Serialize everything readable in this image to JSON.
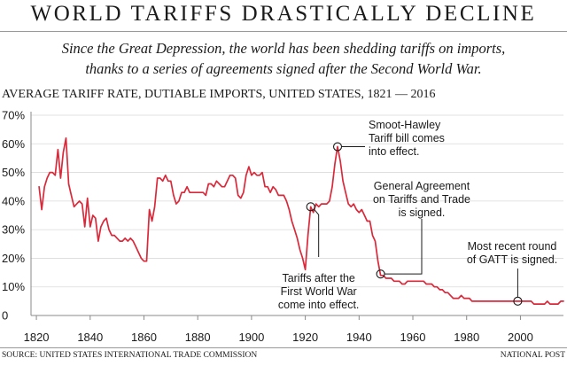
{
  "header": {
    "title": "WORLD TARIFFS DRASTICALLY DECLINE",
    "subtitle_line1": "Since the Great Depression, the world has been shedding tariffs on imports,",
    "subtitle_line2": "thanks to a series of agreements signed after the Second World War."
  },
  "footer": {
    "source": "SOURCE: UNITED STATES INTERNATIONAL TRADE COMMISSION",
    "credit": "NATIONAL POST"
  },
  "colors": {
    "line": "#d9293a",
    "grid": "#d9d9d9",
    "text": "#1a1a1a"
  },
  "chart_data": {
    "type": "line",
    "title": "AVERAGE TARIFF RATE, DUTIABLE IMPORTS, UNITED STATES, 1821 — 2016",
    "xlabel": "",
    "ylabel": "",
    "xlim": [
      1818,
      2016
    ],
    "ylim": [
      0,
      70
    ],
    "x_ticks": [
      1820,
      1840,
      1860,
      1880,
      1900,
      1920,
      1940,
      1960,
      1980,
      2000
    ],
    "y_ticks": [
      0,
      10,
      20,
      30,
      40,
      50,
      60,
      70
    ],
    "y_tick_labels": [
      "0",
      "10%",
      "20%",
      "30%",
      "40%",
      "50%",
      "60%",
      "70%"
    ],
    "grid": true,
    "series": [
      {
        "name": "",
        "color": "#d9293a",
        "points": [
          [
            1821,
            45
          ],
          [
            1822,
            37
          ],
          [
            1823,
            45
          ],
          [
            1824,
            48
          ],
          [
            1825,
            50
          ],
          [
            1826,
            50
          ],
          [
            1827,
            49
          ],
          [
            1828,
            58
          ],
          [
            1829,
            48
          ],
          [
            1830,
            57
          ],
          [
            1831,
            62
          ],
          [
            1832,
            46
          ],
          [
            1833,
            42
          ],
          [
            1834,
            38
          ],
          [
            1835,
            39
          ],
          [
            1836,
            40
          ],
          [
            1837,
            39
          ],
          [
            1838,
            31
          ],
          [
            1839,
            41
          ],
          [
            1840,
            31
          ],
          [
            1841,
            35
          ],
          [
            1842,
            34
          ],
          [
            1843,
            26
          ],
          [
            1844,
            31
          ],
          [
            1845,
            33
          ],
          [
            1846,
            34
          ],
          [
            1847,
            30
          ],
          [
            1848,
            28
          ],
          [
            1849,
            28
          ],
          [
            1850,
            27
          ],
          [
            1851,
            26
          ],
          [
            1852,
            26
          ],
          [
            1853,
            27
          ],
          [
            1854,
            26
          ],
          [
            1855,
            27
          ],
          [
            1856,
            26
          ],
          [
            1857,
            24
          ],
          [
            1858,
            22
          ],
          [
            1859,
            20
          ],
          [
            1860,
            19
          ],
          [
            1861,
            19
          ],
          [
            1862,
            37
          ],
          [
            1863,
            33
          ],
          [
            1864,
            38
          ],
          [
            1865,
            48
          ],
          [
            1866,
            48
          ],
          [
            1867,
            47
          ],
          [
            1868,
            49
          ],
          [
            1869,
            47
          ],
          [
            1870,
            47
          ],
          [
            1871,
            42
          ],
          [
            1872,
            39
          ],
          [
            1873,
            40
          ],
          [
            1874,
            43
          ],
          [
            1875,
            43
          ],
          [
            1876,
            45
          ],
          [
            1877,
            43
          ],
          [
            1878,
            43
          ],
          [
            1879,
            43
          ],
          [
            1880,
            43
          ],
          [
            1881,
            43
          ],
          [
            1882,
            43
          ],
          [
            1883,
            42
          ],
          [
            1884,
            46
          ],
          [
            1885,
            46
          ],
          [
            1886,
            45
          ],
          [
            1887,
            47
          ],
          [
            1888,
            46
          ],
          [
            1889,
            45
          ],
          [
            1890,
            45
          ],
          [
            1891,
            47
          ],
          [
            1892,
            49
          ],
          [
            1893,
            49
          ],
          [
            1894,
            48
          ],
          [
            1895,
            42
          ],
          [
            1896,
            41
          ],
          [
            1897,
            43
          ],
          [
            1898,
            49
          ],
          [
            1899,
            52
          ],
          [
            1900,
            49
          ],
          [
            1901,
            50
          ],
          [
            1902,
            49
          ],
          [
            1903,
            49
          ],
          [
            1904,
            50
          ],
          [
            1905,
            45
          ],
          [
            1906,
            45
          ],
          [
            1907,
            43
          ],
          [
            1908,
            45
          ],
          [
            1909,
            44
          ],
          [
            1910,
            42
          ],
          [
            1911,
            42
          ],
          [
            1912,
            42
          ],
          [
            1913,
            40
          ],
          [
            1914,
            37
          ],
          [
            1915,
            33
          ],
          [
            1916,
            30
          ],
          [
            1917,
            27
          ],
          [
            1918,
            23
          ],
          [
            1919,
            20
          ],
          [
            1920,
            16
          ],
          [
            1921,
            28
          ],
          [
            1922,
            38
          ],
          [
            1923,
            36
          ],
          [
            1924,
            39
          ],
          [
            1925,
            38
          ],
          [
            1926,
            39
          ],
          [
            1927,
            39
          ],
          [
            1928,
            39
          ],
          [
            1929,
            40
          ],
          [
            1930,
            45
          ],
          [
            1931,
            53
          ],
          [
            1932,
            59
          ],
          [
            1933,
            54
          ],
          [
            1934,
            47
          ],
          [
            1935,
            43
          ],
          [
            1936,
            39
          ],
          [
            1937,
            38
          ],
          [
            1938,
            39
          ],
          [
            1939,
            37
          ],
          [
            1940,
            36
          ],
          [
            1941,
            37
          ],
          [
            1942,
            35
          ],
          [
            1943,
            33
          ],
          [
            1944,
            33
          ],
          [
            1945,
            28
          ],
          [
            1946,
            26
          ],
          [
            1947,
            19
          ],
          [
            1948,
            14
          ],
          [
            1949,
            14
          ],
          [
            1950,
            13
          ],
          [
            1951,
            13
          ],
          [
            1952,
            13
          ],
          [
            1953,
            12
          ],
          [
            1954,
            12
          ],
          [
            1955,
            12
          ],
          [
            1956,
            11
          ],
          [
            1957,
            11
          ],
          [
            1958,
            12
          ],
          [
            1959,
            12
          ],
          [
            1960,
            12
          ],
          [
            1961,
            12
          ],
          [
            1962,
            12
          ],
          [
            1963,
            12
          ],
          [
            1964,
            12
          ],
          [
            1965,
            11
          ],
          [
            1966,
            11
          ],
          [
            1967,
            11
          ],
          [
            1968,
            10
          ],
          [
            1969,
            10
          ],
          [
            1970,
            9
          ],
          [
            1971,
            9
          ],
          [
            1972,
            8
          ],
          [
            1973,
            8
          ],
          [
            1974,
            7
          ],
          [
            1975,
            6
          ],
          [
            1976,
            6
          ],
          [
            1977,
            6
          ],
          [
            1978,
            7
          ],
          [
            1979,
            6
          ],
          [
            1980,
            6
          ],
          [
            1981,
            6
          ],
          [
            1982,
            5
          ],
          [
            1983,
            5
          ],
          [
            1984,
            5
          ],
          [
            1985,
            5
          ],
          [
            1986,
            5
          ],
          [
            1987,
            5
          ],
          [
            1988,
            5
          ],
          [
            1989,
            5
          ],
          [
            1990,
            5
          ],
          [
            1991,
            5
          ],
          [
            1992,
            5
          ],
          [
            1993,
            5
          ],
          [
            1994,
            5
          ],
          [
            1995,
            5
          ],
          [
            1996,
            5
          ],
          [
            1997,
            5
          ],
          [
            1998,
            5
          ],
          [
            1999,
            5
          ],
          [
            2000,
            5
          ],
          [
            2001,
            5
          ],
          [
            2002,
            5
          ],
          [
            2003,
            5
          ],
          [
            2004,
            5
          ],
          [
            2005,
            4
          ],
          [
            2006,
            4
          ],
          [
            2007,
            4
          ],
          [
            2008,
            4
          ],
          [
            2009,
            4
          ],
          [
            2010,
            5
          ],
          [
            2011,
            4
          ],
          [
            2012,
            4
          ],
          [
            2013,
            4
          ],
          [
            2014,
            4
          ],
          [
            2015,
            5
          ],
          [
            2016,
            5
          ]
        ]
      }
    ],
    "annotations": [
      {
        "year": 1922,
        "value": 38,
        "lines": [
          "Tariffs after the",
          "First World War",
          "come into effect."
        ]
      },
      {
        "year": 1932,
        "value": 59,
        "lines": [
          "Smoot-Hawley",
          "Tariff bill comes",
          "into effect."
        ]
      },
      {
        "year": 1948,
        "value": 14.5,
        "lines": [
          "General Agreement",
          "on Tariffs and Trade",
          "is signed."
        ]
      },
      {
        "year": 1999,
        "value": 5,
        "lines": [
          "Most recent round",
          "of GATT is signed."
        ]
      }
    ]
  }
}
